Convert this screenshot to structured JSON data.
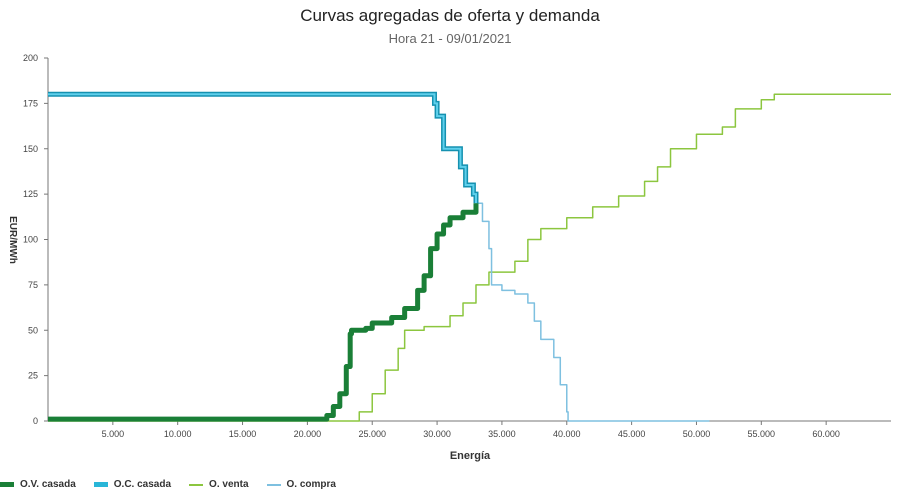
{
  "title": "Curvas agregadas de oferta y demanda",
  "subtitle": "Hora 21 - 09/01/2021",
  "legend": [
    {
      "label": "O.V. casada",
      "color": "#1a7f37",
      "type": "thick"
    },
    {
      "label": "O.C. casada",
      "color": "#29b6d8",
      "type": "thick"
    },
    {
      "label": "O. venta",
      "color": "#8cc63f",
      "type": "line"
    },
    {
      "label": "O. compra",
      "color": "#7ec0e0",
      "type": "line"
    }
  ],
  "chart_data": {
    "type": "line",
    "title": "Curvas agregadas de oferta y demanda",
    "subtitle": "Hora 21 - 09/01/2021",
    "xlabel": "Energía",
    "ylabel": "EUR/MWh",
    "xlim": [
      0,
      65000
    ],
    "ylim": [
      0,
      200
    ],
    "xticks": [
      "5.000",
      "10.000",
      "15.000",
      "20.000",
      "25.000",
      "30.000",
      "35.000",
      "40.000",
      "45.000",
      "50.000",
      "55.000",
      "60.000"
    ],
    "yticks": [
      "0",
      "25",
      "50",
      "75",
      "100",
      "125",
      "150",
      "175",
      "200"
    ],
    "series": [
      {
        "name": "O.V. casada",
        "points": [
          [
            0,
            1
          ],
          [
            20500,
            1
          ],
          [
            21500,
            3
          ],
          [
            22000,
            8
          ],
          [
            22500,
            15
          ],
          [
            23000,
            30
          ],
          [
            23300,
            48
          ],
          [
            23400,
            50
          ],
          [
            24500,
            51
          ],
          [
            25000,
            54
          ],
          [
            26500,
            57
          ],
          [
            27500,
            62
          ],
          [
            28500,
            72
          ],
          [
            29000,
            80
          ],
          [
            29500,
            95
          ],
          [
            30000,
            103
          ],
          [
            30500,
            108
          ],
          [
            31000,
            112
          ],
          [
            32000,
            115
          ],
          [
            33000,
            120
          ]
        ]
      },
      {
        "name": "O.C. casada",
        "points": [
          [
            0,
            180
          ],
          [
            29500,
            180
          ],
          [
            29800,
            175
          ],
          [
            30000,
            168
          ],
          [
            30500,
            150
          ],
          [
            31500,
            150
          ],
          [
            31800,
            140
          ],
          [
            32200,
            130
          ],
          [
            32800,
            125
          ],
          [
            33000,
            120
          ]
        ]
      },
      {
        "name": "O. venta",
        "points": [
          [
            0,
            0
          ],
          [
            23000,
            0
          ],
          [
            24000,
            5
          ],
          [
            25000,
            15
          ],
          [
            26000,
            28
          ],
          [
            27000,
            40
          ],
          [
            27500,
            50
          ],
          [
            29000,
            52
          ],
          [
            31000,
            58
          ],
          [
            32000,
            65
          ],
          [
            33000,
            75
          ],
          [
            34000,
            82
          ],
          [
            36000,
            88
          ],
          [
            37000,
            100
          ],
          [
            38000,
            106
          ],
          [
            40000,
            112
          ],
          [
            42000,
            118
          ],
          [
            44000,
            124
          ],
          [
            46000,
            132
          ],
          [
            47000,
            140
          ],
          [
            48000,
            150
          ],
          [
            50000,
            158
          ],
          [
            52000,
            162
          ],
          [
            53000,
            172
          ],
          [
            55000,
            177
          ],
          [
            56000,
            180
          ],
          [
            65000,
            180
          ]
        ]
      },
      {
        "name": "O. compra",
        "points": [
          [
            33000,
            120
          ],
          [
            33500,
            110
          ],
          [
            34000,
            95
          ],
          [
            34200,
            75
          ],
          [
            35000,
            72
          ],
          [
            36000,
            70
          ],
          [
            37000,
            65
          ],
          [
            37500,
            55
          ],
          [
            38000,
            45
          ],
          [
            39000,
            35
          ],
          [
            39500,
            20
          ],
          [
            40000,
            5
          ],
          [
            40100,
            0
          ],
          [
            51000,
            0
          ]
        ]
      }
    ]
  }
}
